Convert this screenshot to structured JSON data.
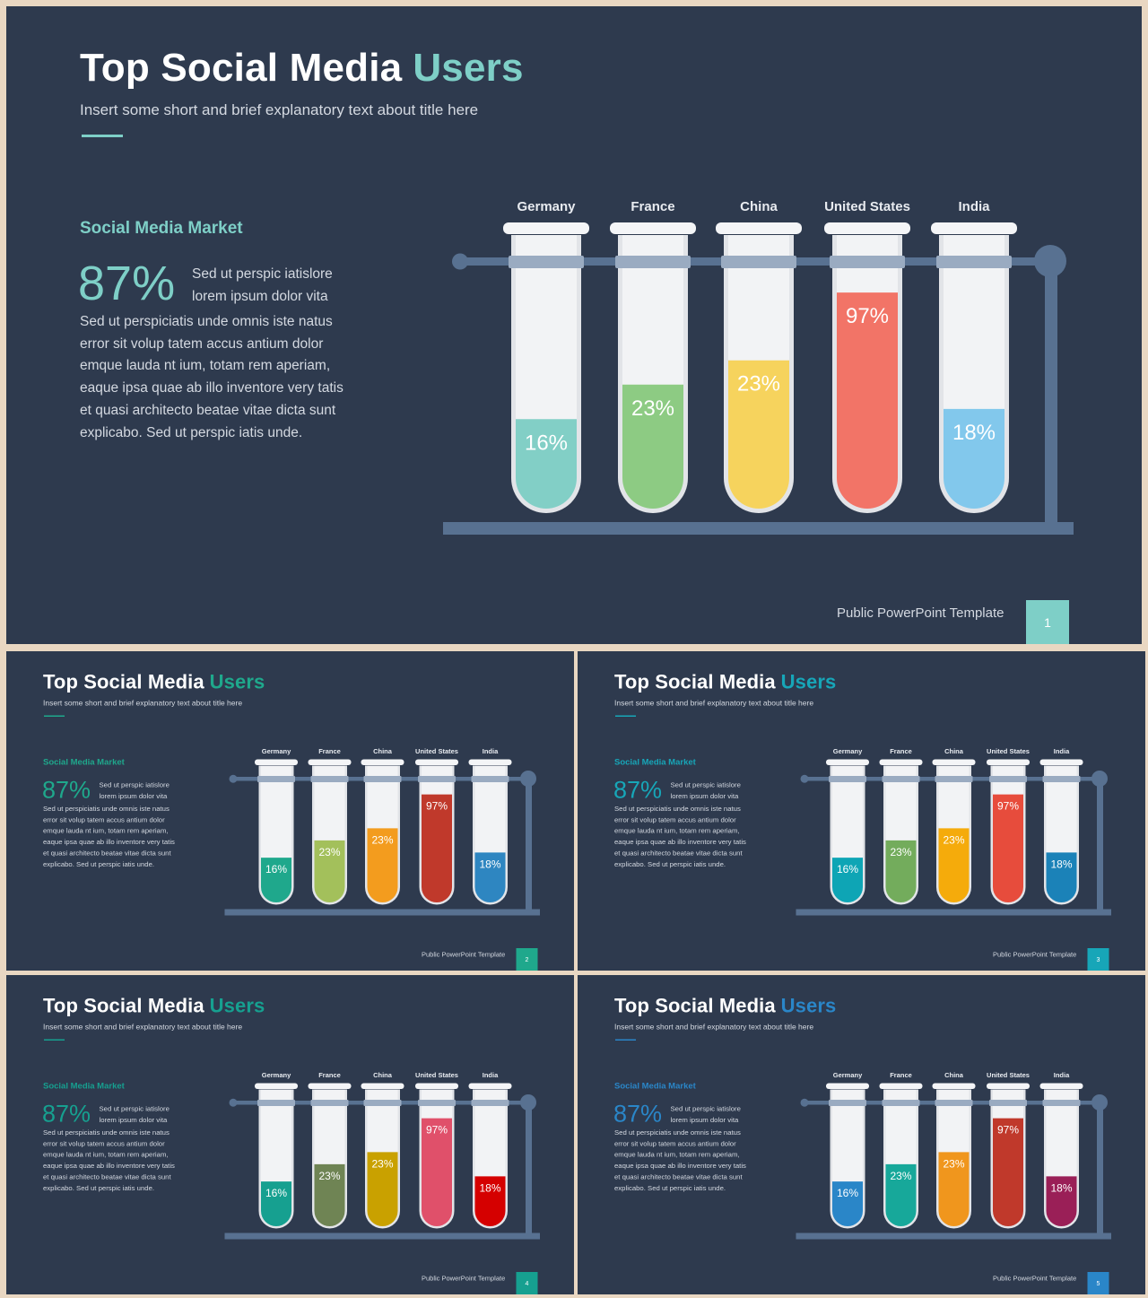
{
  "slides": [
    {
      "title": "Top Social Media",
      "title_accent": "Users",
      "subtitle": "Insert some short and brief explanatory text about title here",
      "section_heading": "Social Media Market",
      "stat_value": "87%",
      "stat_side": "Sed ut perspic iatislore lorem ipsum dolor vita",
      "body": "Sed ut perspiciatis unde omnis iste natus error sit volup tatem accus antium dolor emque lauda nt ium, totam rem aperiam, eaque ipsa quae ab illo inventore very tatis et quasi architecto beatae vitae dicta sunt explicabo.  Sed ut perspic iatis unde.",
      "footer": "Public PowerPoint  Template",
      "page_number": "1",
      "colors": {
        "accent": "#7ecfc7",
        "page_box": "#7ecfc7",
        "tubes": [
          "#82cfc6",
          "#8dcb83",
          "#f6d35d",
          "#f27467",
          "#82c8ec"
        ]
      }
    },
    {
      "title": "Top Social Media",
      "title_accent": "Users",
      "subtitle": "Insert some short and brief explanatory text about title here",
      "section_heading": "Social Media Market",
      "stat_value": "87%",
      "stat_side": "Sed ut perspic iatislore lorem ipsum dolor vita",
      "body": "Sed ut perspiciatis unde omnis iste natus error sit volup tatem accus antium dolor emque lauda nt ium, totam rem aperiam, eaque ipsa quae ab illo inventore very tatis et quasi architecto beatae vitae dicta sunt explicabo.  Sed ut perspic iatis unde.",
      "footer": "Public PowerPoint  Template",
      "page_number": "2",
      "colors": {
        "accent": "#1fa88c",
        "page_box": "#1fa88c",
        "tubes": [
          "#1fa88c",
          "#a3c05b",
          "#f39c1e",
          "#c0392b",
          "#2e86c1"
        ]
      }
    },
    {
      "title": "Top Social Media",
      "title_accent": "Users",
      "subtitle": "Insert some short and brief explanatory text about title here",
      "section_heading": "Social Media Market",
      "stat_value": "87%",
      "stat_side": "Sed ut perspic iatislore lorem ipsum dolor vita",
      "body": "Sed ut perspiciatis unde omnis iste natus error sit volup tatem accus antium dolor emque lauda nt ium, totam rem aperiam, eaque ipsa quae ab illo inventore very tatis et quasi architecto beatae vitae dicta sunt explicabo.  Sed ut perspic iatis unde.",
      "footer": "Public PowerPoint  Template",
      "page_number": "3",
      "colors": {
        "accent": "#17a6b8",
        "page_box": "#17a6b8",
        "tubes": [
          "#0ea5b5",
          "#73ac5c",
          "#f5ab0b",
          "#e74c3c",
          "#1b82b8"
        ]
      }
    },
    {
      "title": "Top Social Media",
      "title_accent": "Users",
      "subtitle": "Insert some short and brief explanatory text about title here",
      "section_heading": "Social Media Market",
      "stat_value": "87%",
      "stat_side": "Sed ut perspic iatislore lorem ipsum dolor vita",
      "body": "Sed ut perspiciatis unde omnis iste natus error sit volup tatem accus antium dolor emque lauda nt ium, totam rem aperiam, eaque ipsa quae ab illo inventore very tatis et quasi architecto beatae vitae dicta sunt explicabo.  Sed ut perspic iatis unde.",
      "footer": "Public PowerPoint  Template",
      "page_number": "4",
      "colors": {
        "accent": "#16a090",
        "page_box": "#16a090",
        "tubes": [
          "#16a090",
          "#6f8454",
          "#c9a100",
          "#e0506a",
          "#d50000"
        ]
      }
    },
    {
      "title": "Top Social Media",
      "title_accent": "Users",
      "subtitle": "Insert some short and brief explanatory text about title here",
      "section_heading": "Social Media Market",
      "stat_value": "87%",
      "stat_side": "Sed ut perspic iatislore lorem ipsum dolor vita",
      "body": "Sed ut perspiciatis unde omnis iste natus error sit volup tatem accus antium dolor emque lauda nt ium, totam rem aperiam, eaque ipsa quae ab illo inventore very tatis et quasi architecto beatae vitae dicta sunt explicabo.  Sed ut perspic iatis unde.",
      "footer": "Public PowerPoint  Template",
      "page_number": "5",
      "colors": {
        "accent": "#2a86c8",
        "page_box": "#2a86c8",
        "tubes": [
          "#2a86c8",
          "#17a89a",
          "#f0961d",
          "#c0392b",
          "#9a1f57"
        ]
      }
    }
  ],
  "chart_data": {
    "type": "bar",
    "categories": [
      "Germany",
      "France",
      "China",
      "United States",
      "India"
    ],
    "values": [
      16,
      23,
      23,
      97,
      18
    ],
    "labels": [
      "16%",
      "23%",
      "23%",
      "97%",
      "18%"
    ],
    "fill_fractions": [
      0.35,
      0.485,
      0.58,
      0.845,
      0.39
    ]
  }
}
